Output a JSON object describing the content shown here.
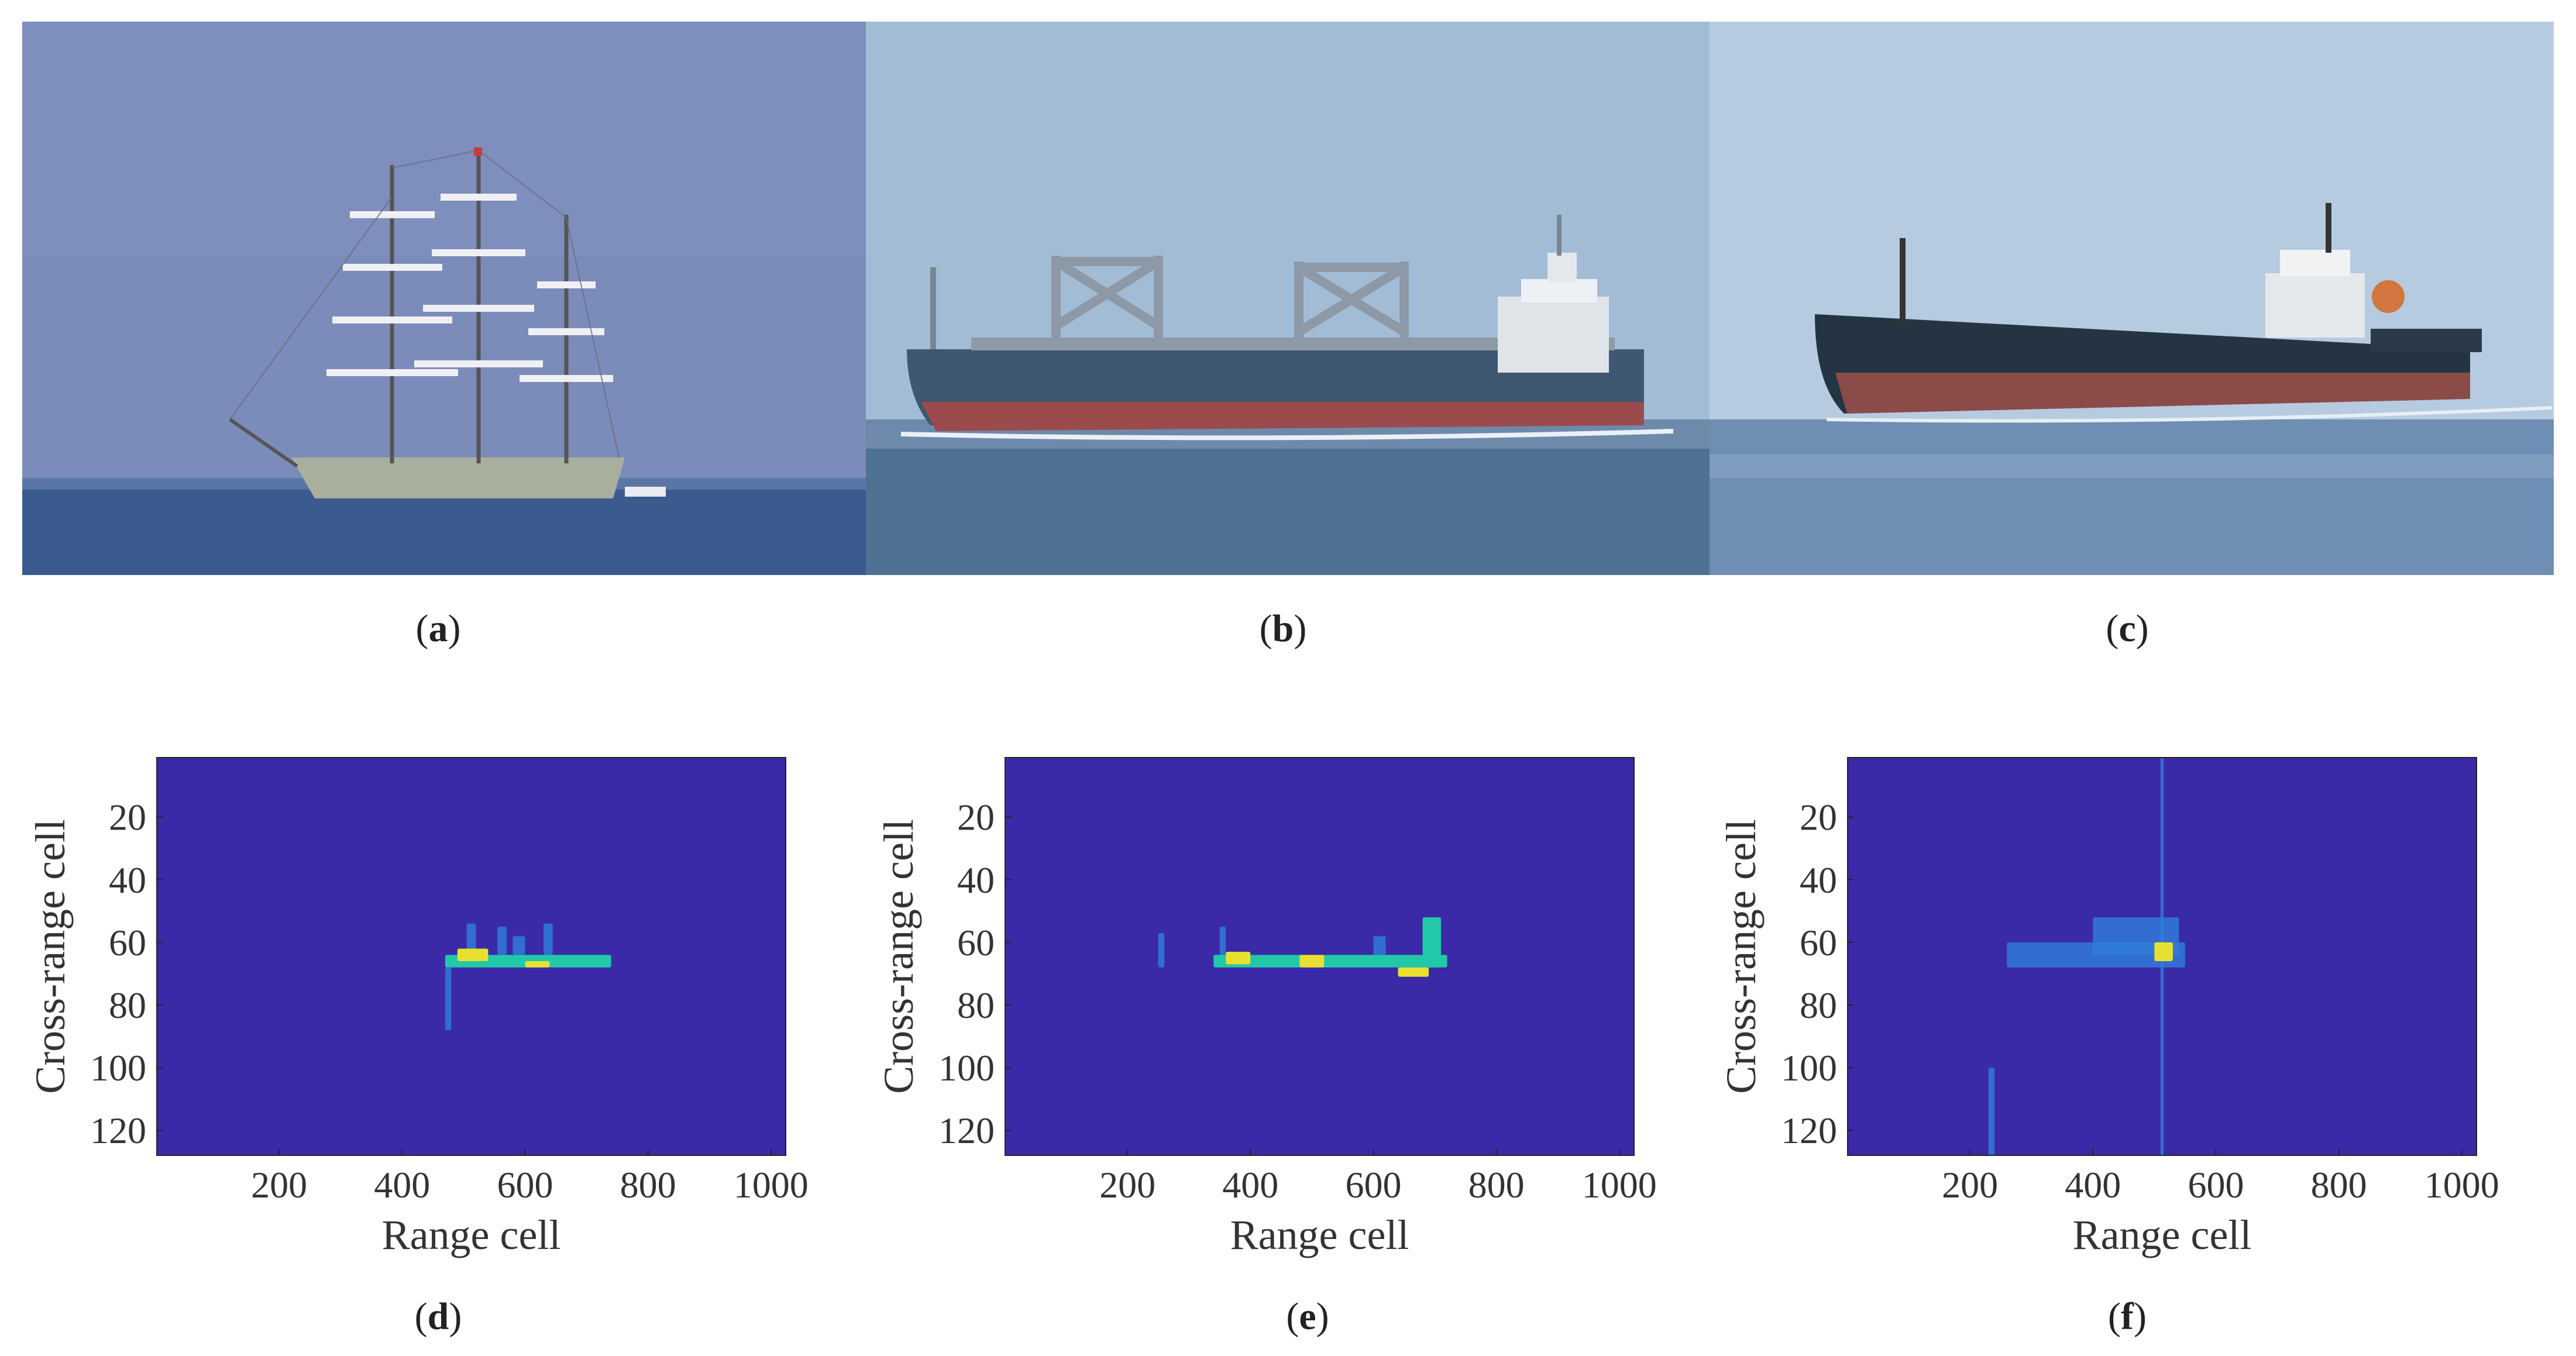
{
  "photos": [
    {
      "id": "a",
      "caption_open": "(",
      "caption_letter": "a",
      "caption_close": ")",
      "subject": "three-masted sailing ship",
      "colors": {
        "sky": "#7a8cb8",
        "sea": "#3a5a8c",
        "hull": "#a8ae9c"
      }
    },
    {
      "id": "b",
      "caption_open": "(",
      "caption_letter": "b",
      "caption_close": ")",
      "subject": "bulk carrier with cranes",
      "colors": {
        "sky": "#9fb9d4",
        "sea": "#4d6f92",
        "hull_top": "#3e5670",
        "hull_bottom": "#9a4a4c"
      }
    },
    {
      "id": "c",
      "caption_open": "(",
      "caption_letter": "c",
      "caption_close": ")",
      "subject": "dark cargo ship",
      "colors": {
        "sky": "#b8cde0",
        "sea": "#6f90b3",
        "hull_top": "#22323f",
        "hull_bottom": "#8a4a48"
      }
    }
  ],
  "plots": [
    {
      "id": "d",
      "caption_open": "(",
      "caption_letter": "d",
      "caption_close": ")"
    },
    {
      "id": "e",
      "caption_open": "(",
      "caption_letter": "e",
      "caption_close": ")"
    },
    {
      "id": "f",
      "caption_open": "(",
      "caption_letter": "f",
      "caption_close": ")"
    }
  ],
  "chart_data": [
    {
      "type": "heatmap",
      "panel": "d",
      "xlabel": "Range cell",
      "ylabel": "Cross-range cell",
      "xlim": [
        1,
        1024
      ],
      "ylim": [
        128,
        1
      ],
      "xticks": [
        200,
        400,
        600,
        800,
        1000
      ],
      "yticks": [
        20,
        40,
        60,
        80,
        100,
        120
      ],
      "colormap": {
        "background": "#3a2aa8",
        "low": "#2f7fd8",
        "mid": "#21c9a8",
        "high": "#e8e030"
      },
      "hotspots": [
        {
          "x": [
            470,
            740
          ],
          "y": [
            64,
            68
          ],
          "level": "mid"
        },
        {
          "x": [
            490,
            540
          ],
          "y": [
            62,
            66
          ],
          "level": "high"
        },
        {
          "x": [
            600,
            640
          ],
          "y": [
            66,
            68
          ],
          "level": "high"
        },
        {
          "x": [
            505,
            520
          ],
          "y": [
            54,
            64
          ],
          "level": "low"
        },
        {
          "x": [
            555,
            570
          ],
          "y": [
            55,
            64
          ],
          "level": "low"
        },
        {
          "x": [
            630,
            645
          ],
          "y": [
            54,
            64
          ],
          "level": "low"
        },
        {
          "x": [
            470,
            480
          ],
          "y": [
            68,
            88
          ],
          "level": "low"
        },
        {
          "x": [
            580,
            600
          ],
          "y": [
            58,
            64
          ],
          "level": "low"
        }
      ]
    },
    {
      "type": "heatmap",
      "panel": "e",
      "xlabel": "Range cell",
      "ylabel": "Cross-range cell",
      "xlim": [
        1,
        1024
      ],
      "ylim": [
        128,
        1
      ],
      "xticks": [
        200,
        400,
        600,
        800,
        1000
      ],
      "yticks": [
        20,
        40,
        60,
        80,
        100,
        120
      ],
      "colormap": {
        "background": "#3a2aa8",
        "low": "#2f7fd8",
        "mid": "#21c9a8",
        "high": "#e8e030"
      },
      "hotspots": [
        {
          "x": [
            340,
            720
          ],
          "y": [
            64,
            68
          ],
          "level": "mid"
        },
        {
          "x": [
            360,
            400
          ],
          "y": [
            63,
            67
          ],
          "level": "high"
        },
        {
          "x": [
            480,
            520
          ],
          "y": [
            64,
            68
          ],
          "level": "high"
        },
        {
          "x": [
            640,
            690
          ],
          "y": [
            68,
            71
          ],
          "level": "high"
        },
        {
          "x": [
            680,
            710
          ],
          "y": [
            52,
            68
          ],
          "level": "mid"
        },
        {
          "x": [
            250,
            260
          ],
          "y": [
            57,
            68
          ],
          "level": "low"
        },
        {
          "x": [
            350,
            360
          ],
          "y": [
            55,
            65
          ],
          "level": "low"
        },
        {
          "x": [
            600,
            620
          ],
          "y": [
            58,
            66
          ],
          "level": "low"
        }
      ]
    },
    {
      "type": "heatmap",
      "panel": "f",
      "xlabel": "Range cell",
      "ylabel": "Cross-range cell",
      "xlim": [
        1,
        1024
      ],
      "ylim": [
        128,
        1
      ],
      "xticks": [
        200,
        400,
        600,
        800,
        1000
      ],
      "yticks": [
        20,
        40,
        60,
        80,
        100,
        120
      ],
      "colormap": {
        "background": "#3a2aa8",
        "low": "#2f7fd8",
        "mid": "#21c9a8",
        "high": "#e8e030"
      },
      "hotspots": [
        {
          "x": [
            260,
            550
          ],
          "y": [
            60,
            68
          ],
          "level": "low"
        },
        {
          "x": [
            400,
            540
          ],
          "y": [
            52,
            64
          ],
          "level": "low"
        },
        {
          "x": [
            500,
            530
          ],
          "y": [
            60,
            66
          ],
          "level": "high"
        },
        {
          "x": [
            230,
            240
          ],
          "y": [
            100,
            128
          ],
          "level": "low"
        },
        {
          "x": [
            510,
            515
          ],
          "y": [
            1,
            128
          ],
          "level": "low"
        }
      ]
    }
  ]
}
